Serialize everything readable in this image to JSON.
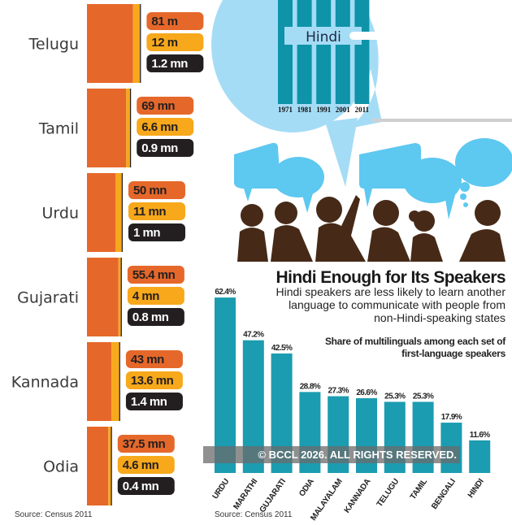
{
  "chart_data": [
    {
      "type": "bar",
      "orientation": "horizontal-stacked",
      "categories": [
        "Telugu",
        "Tamil",
        "Urdu",
        "Gujarati",
        "Kannada",
        "Odia"
      ],
      "series": [
        {
          "values": [
            81,
            69,
            50,
            55.4,
            43,
            37.5
          ],
          "labels": [
            "81 m",
            "69 mn",
            "50 mn",
            "55.4 mn",
            "43 mn",
            "37.5 mn"
          ],
          "color": "#e5682a"
        },
        {
          "values": [
            12,
            6.6,
            11,
            4,
            13.6,
            4.6
          ],
          "labels": [
            "12 m",
            "6.6 mn",
            "11 mn",
            "4 mn",
            "13.6 mn",
            "4.6 mn"
          ],
          "color": "#f7a81b"
        },
        {
          "values": [
            1.2,
            0.9,
            1,
            0.8,
            1.4,
            0.4
          ],
          "labels": [
            "1.2 mn",
            "0.9 mn",
            "1 mn",
            "0.8 mn",
            "1.4 mn",
            "0.4 mn"
          ],
          "color": "#231f20"
        }
      ],
      "source": "Source: Census 2011"
    },
    {
      "type": "bar",
      "title": "Hindi Enough for Its Speakers",
      "subtitle": [
        "Hindi speakers are less likely to learn another",
        "language to communicate with people from",
        "non-Hindi-speaking states"
      ],
      "note": [
        "Share of multilinguals among each set of",
        "first-language speakers"
      ],
      "categories": [
        "URDU",
        "MARATHI",
        "GUJARATI",
        "ODIA",
        "MALAYALAM",
        "KANNADA",
        "TELUGU",
        "TAMIL",
        "BENGALI",
        "HINDI"
      ],
      "values": [
        62.4,
        47.2,
        42.5,
        28.8,
        27.3,
        26.6,
        25.3,
        25.3,
        17.9,
        11.6
      ],
      "value_labels": [
        "62.4%",
        "47.2%",
        "42.5%",
        "28.8%",
        "27.3%",
        "26.6%",
        "25.3%",
        "25.3%",
        "17.9%",
        "11.6%"
      ],
      "unit": "%",
      "color": "#1b9cb0",
      "grid": false,
      "source": "Source: Census 2011"
    },
    {
      "type": "bar",
      "label": "Hindi",
      "categories": [
        "1971",
        "1981",
        "1991",
        "2001",
        "2011"
      ],
      "color": "#0e93a8"
    }
  ],
  "watermark": "© BCCL 2026. ALL RIGHTS RESERVED.",
  "colors": {
    "bubble": "#4cc3ef",
    "silhouette": "#462a17",
    "bubble_big": "#a5dcf5"
  }
}
